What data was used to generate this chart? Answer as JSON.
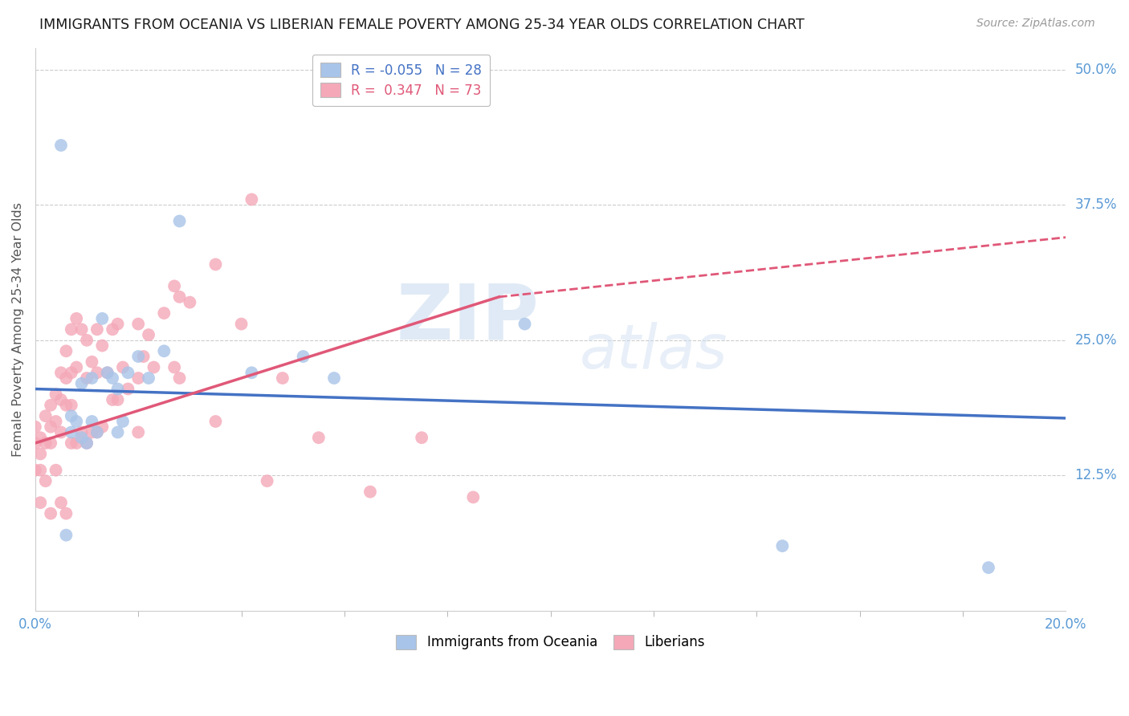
{
  "title": "IMMIGRANTS FROM OCEANIA VS LIBERIAN FEMALE POVERTY AMONG 25-34 YEAR OLDS CORRELATION CHART",
  "source_text": "Source: ZipAtlas.com",
  "ylabel": "Female Poverty Among 25-34 Year Olds",
  "xlim": [
    0.0,
    0.2
  ],
  "ylim": [
    0.0,
    0.52
  ],
  "color_oceania": "#a8c4e8",
  "color_liberian": "#f4a8b8",
  "color_line_oceania": "#4472c4",
  "color_line_liberian": "#e05878",
  "background_color": "#ffffff",
  "grid_color": "#cccccc",
  "oceania_x": [
    0.005,
    0.006,
    0.007,
    0.007,
    0.008,
    0.009,
    0.009,
    0.01,
    0.011,
    0.011,
    0.012,
    0.013,
    0.014,
    0.015,
    0.016,
    0.016,
    0.017,
    0.018,
    0.02,
    0.022,
    0.025,
    0.028,
    0.042,
    0.052,
    0.058,
    0.095,
    0.145,
    0.185
  ],
  "oceania_y": [
    0.43,
    0.07,
    0.18,
    0.165,
    0.175,
    0.16,
    0.21,
    0.155,
    0.215,
    0.175,
    0.165,
    0.27,
    0.22,
    0.215,
    0.205,
    0.165,
    0.175,
    0.22,
    0.235,
    0.215,
    0.24,
    0.36,
    0.22,
    0.235,
    0.215,
    0.265,
    0.06,
    0.04
  ],
  "liberian_x": [
    0.0,
    0.0,
    0.0,
    0.001,
    0.001,
    0.001,
    0.001,
    0.002,
    0.002,
    0.002,
    0.003,
    0.003,
    0.003,
    0.003,
    0.004,
    0.004,
    0.004,
    0.005,
    0.005,
    0.005,
    0.005,
    0.006,
    0.006,
    0.006,
    0.006,
    0.007,
    0.007,
    0.007,
    0.007,
    0.008,
    0.008,
    0.008,
    0.009,
    0.009,
    0.01,
    0.01,
    0.01,
    0.011,
    0.011,
    0.012,
    0.012,
    0.012,
    0.013,
    0.013,
    0.014,
    0.015,
    0.015,
    0.016,
    0.016,
    0.017,
    0.018,
    0.02,
    0.02,
    0.02,
    0.021,
    0.022,
    0.023,
    0.025,
    0.027,
    0.027,
    0.028,
    0.028,
    0.03,
    0.035,
    0.035,
    0.04,
    0.042,
    0.045,
    0.048,
    0.055,
    0.065,
    0.075,
    0.085
  ],
  "liberian_y": [
    0.17,
    0.155,
    0.13,
    0.16,
    0.145,
    0.13,
    0.1,
    0.18,
    0.155,
    0.12,
    0.19,
    0.17,
    0.155,
    0.09,
    0.2,
    0.175,
    0.13,
    0.22,
    0.195,
    0.165,
    0.1,
    0.24,
    0.215,
    0.19,
    0.09,
    0.26,
    0.22,
    0.19,
    0.155,
    0.27,
    0.225,
    0.155,
    0.26,
    0.165,
    0.25,
    0.215,
    0.155,
    0.23,
    0.165,
    0.26,
    0.22,
    0.165,
    0.245,
    0.17,
    0.22,
    0.26,
    0.195,
    0.265,
    0.195,
    0.225,
    0.205,
    0.265,
    0.215,
    0.165,
    0.235,
    0.255,
    0.225,
    0.275,
    0.3,
    0.225,
    0.29,
    0.215,
    0.285,
    0.32,
    0.175,
    0.265,
    0.38,
    0.12,
    0.215,
    0.16,
    0.11,
    0.16,
    0.105
  ]
}
